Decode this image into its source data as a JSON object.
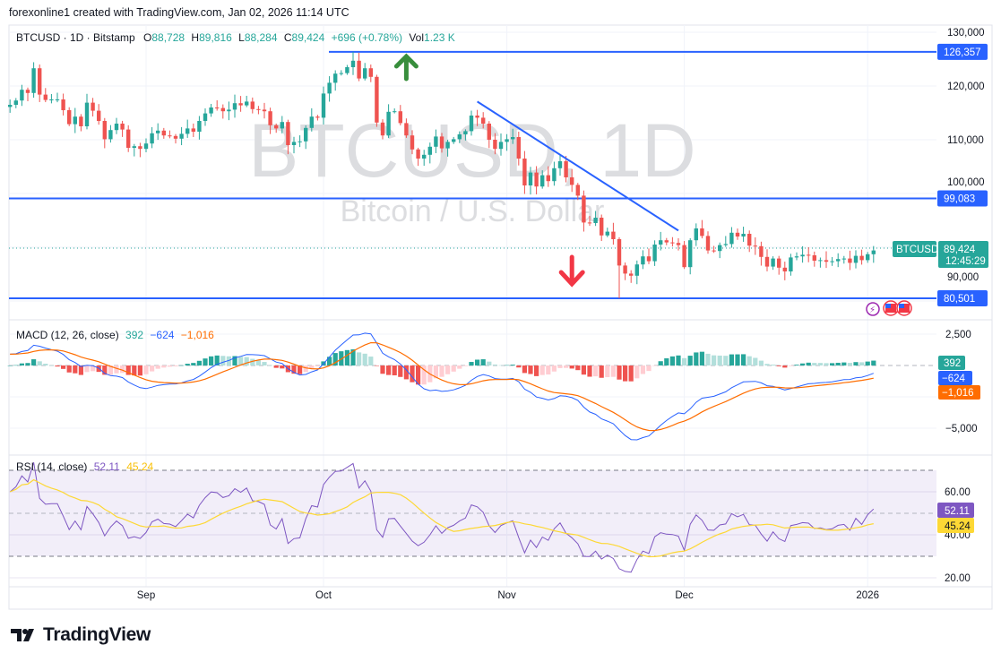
{
  "caption": "forexonline1 created with TradingView.com, Jan 02, 2026 11:14 UTC",
  "legend": {
    "symbol": "BTCUSD · 1D · Bitstamp",
    "o_label": "O",
    "o": "88,728",
    "h_label": "H",
    "h": "89,816",
    "l_label": "L",
    "l": "88,284",
    "c_label": "C",
    "c": "89,424",
    "change": "+696 (+0.78%)",
    "vol_label": "Vol",
    "vol": "1.23 K"
  },
  "watermark": {
    "title": "BTCUSD, 1D",
    "subtitle": "Bitcoin / U.S. Dollar"
  },
  "colors": {
    "up": "#26a69a",
    "down": "#ef5350",
    "hist_up_light": "#b2dfdb",
    "hist_down_light": "#ffcdd2",
    "line_blue": "#2962ff",
    "macd": "#2962ff",
    "signal": "#ff6d00",
    "rsi": "#7e57c2",
    "rsi_ma": "#fdd835"
  },
  "price_axis": [
    "130,000",
    "120,000",
    "110,000",
    "100,000",
    "90,000"
  ],
  "price_tags": {
    "symbol": "BTCUSD",
    "last": "89,424",
    "countdown": "12:45:29"
  },
  "levels": [
    {
      "value": 126357,
      "label": "126,357"
    },
    {
      "value": 99083,
      "label": "99,083"
    },
    {
      "value": 80501,
      "label": "80,501"
    }
  ],
  "trendline": {
    "from": {
      "index": 79,
      "price": 117100
    },
    "to": {
      "index": 113,
      "price": 93100
    }
  },
  "arrows": [
    {
      "type": "up",
      "index": 67,
      "color": "#388e3c"
    },
    {
      "type": "down",
      "index": 95,
      "color": "#f23645"
    }
  ],
  "time_axis": [
    {
      "label": "Sep",
      "index": 23
    },
    {
      "label": "Oct",
      "index": 53
    },
    {
      "label": "Nov",
      "index": 84
    },
    {
      "label": "Dec",
      "index": 114
    },
    {
      "label": "2026",
      "index": 145
    }
  ],
  "macd": {
    "title": "MACD (12, 26, close)",
    "hist": "392",
    "macd": "−624",
    "signal": "−1,016",
    "axis": [
      "2,500",
      "−5,000"
    ]
  },
  "rsi": {
    "title": "RSI (14, close)",
    "value": "52.11",
    "ma": "45.24",
    "axis": [
      "60.00",
      "40.00",
      "20.00"
    ]
  },
  "brand": "TradingView",
  "chart_data": {
    "type": "candlestick",
    "title": "BTCUSD · 1D · Bitstamp",
    "x_start": "2025-08-09",
    "x_end": "2026-01-02",
    "ylim": [
      78000,
      131000
    ],
    "closes_thousands": [
      116.5,
      117.3,
      119.3,
      118.7,
      123.3,
      118.4,
      117.4,
      117.5,
      117.5,
      115.5,
      112.9,
      114.3,
      112.5,
      116.9,
      115.4,
      113.5,
      110.1,
      111.8,
      113.0,
      111.9,
      108.5,
      108.8,
      108.3,
      109.3,
      111.2,
      111.7,
      110.8,
      110.7,
      110.2,
      111.1,
      112.1,
      111.5,
      113.5,
      114.9,
      116.0,
      115.9,
      115.3,
      115.6,
      116.8,
      116.4,
      117.1,
      115.7,
      115.6,
      115.3,
      112.7,
      112.1,
      113.3,
      109.0,
      109.6,
      109.7,
      112.2,
      114.3,
      114.1,
      118.6,
      120.6,
      122.3,
      122.4,
      123.5,
      124.7,
      121.4,
      123.3,
      121.7,
      113.2,
      110.8,
      115.2,
      115.3,
      113.1,
      110.8,
      108.2,
      106.5,
      107.2,
      108.7,
      110.6,
      108.4,
      109.6,
      110.1,
      111.0,
      111.6,
      114.5,
      114.1,
      113.0,
      110.0,
      108.3,
      109.6,
      110.1,
      110.5,
      106.5,
      101.5,
      103.9,
      101.3,
      103.4,
      102.3,
      104.7,
      106.0,
      103.0,
      101.6,
      99.6,
      94.6,
      94.5,
      95.5,
      92.2,
      92.9,
      91.5,
      86.6,
      85.1,
      84.7,
      86.8,
      88.3,
      87.4,
      90.5,
      91.3,
      90.9,
      90.8,
      90.4,
      86.3,
      91.3,
      93.5,
      92.1,
      89.4,
      89.3,
      90.4,
      90.6,
      92.7,
      92.0,
      92.5,
      90.3,
      90.2,
      88.2,
      86.4,
      87.9,
      86.2,
      85.5,
      88.1,
      88.3,
      88.6,
      88.5,
      87.5,
      87.6,
      87.3,
      87.4,
      87.8,
      87.9,
      87.1,
      88.4,
      87.6,
      88.7,
      89.4
    ]
  }
}
